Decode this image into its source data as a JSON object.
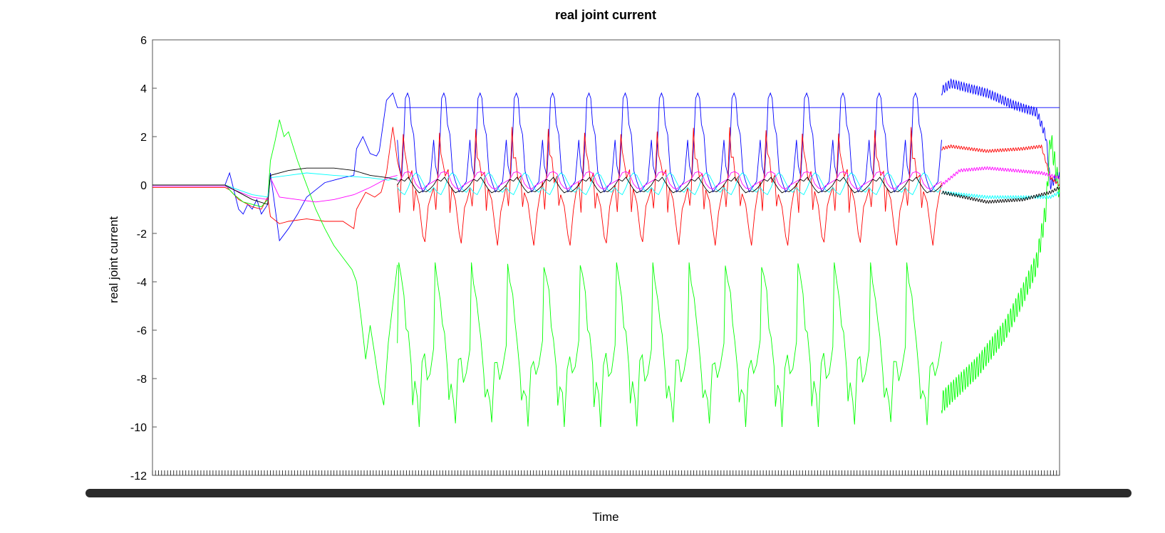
{
  "chart_data": {
    "type": "line",
    "title": "real joint current",
    "xlabel": "Time",
    "ylabel": "real joint current",
    "ylim": [
      -12,
      6
    ],
    "yticks": [
      6,
      4,
      2,
      0,
      -2,
      -4,
      -6,
      -8,
      -10,
      -12
    ],
    "xlim": [
      0,
      1000
    ],
    "grid": false,
    "x_tick_labels_visible": false,
    "colors": {
      "blue": "#0000ff",
      "red": "#ff0000",
      "green": "#00ff00",
      "magenta": "#ff00ff",
      "cyan": "#00ffff",
      "black": "#000000",
      "teal": "#008080"
    },
    "series": [
      {
        "color": "#0000ff",
        "x": [
          0,
          80,
          85,
          95,
          100,
          105,
          110,
          115,
          120,
          127,
          130,
          140,
          150,
          160,
          170,
          180,
          190,
          200,
          210,
          222,
          225,
          232,
          240,
          247,
          250,
          258,
          265,
          270,
          1000
        ],
        "y": [
          0,
          0,
          0.5,
          -1.0,
          -1.2,
          -0.8,
          -1.0,
          -0.6,
          -1.2,
          -0.8,
          0.5,
          -2.3,
          -1.8,
          -1.2,
          -0.5,
          -0.2,
          0.1,
          0.2,
          0.3,
          0.4,
          1.5,
          2.0,
          1.3,
          1.2,
          1.4,
          3.5,
          3.8,
          3.2,
          3.2
        ]
      },
      {
        "color": "#0000ff",
        "x": [
          0,
          10,
          20,
          30,
          40
        ],
        "y": [
          0,
          0,
          0,
          0,
          0
        ]
      },
      {
        "color": "#ff0000",
        "x": [
          0,
          80,
          85,
          95,
          110,
          120,
          127,
          130,
          140,
          150,
          170,
          190,
          210,
          222,
          225,
          235,
          245,
          252,
          258,
          265,
          270,
          275
        ],
        "y": [
          -0.1,
          -0.1,
          -0.2,
          -0.6,
          -0.9,
          -1.0,
          -0.5,
          -1.3,
          -1.6,
          -1.5,
          -1.4,
          -1.5,
          -1.5,
          -1.8,
          -1.0,
          -0.3,
          -0.5,
          -0.3,
          0.5,
          2.4,
          1.0,
          0.2
        ]
      },
      {
        "color": "#00ff00",
        "x": [
          0,
          80,
          90,
          100,
          110,
          120,
          127,
          130,
          135,
          140,
          145,
          150,
          160,
          170,
          180,
          190,
          200,
          210,
          220,
          225,
          230,
          235,
          240,
          245,
          250,
          255,
          260,
          270
        ],
        "y": [
          0,
          0,
          -0.4,
          -0.7,
          -0.8,
          -0.9,
          -0.6,
          1.0,
          1.8,
          2.7,
          2.0,
          2.2,
          1.0,
          0.0,
          -1.0,
          -1.8,
          -2.5,
          -3.0,
          -3.5,
          -4.0,
          -5.5,
          -7.2,
          -5.8,
          -7.0,
          -8.3,
          -9.1,
          -6.5,
          -3.3
        ]
      },
      {
        "color": "#ff00ff",
        "x": [
          0,
          80,
          90,
          110,
          127,
          130,
          140,
          160,
          180,
          200,
          222,
          240,
          260,
          270
        ],
        "y": [
          -0.05,
          -0.05,
          -0.2,
          -0.5,
          -0.6,
          0.3,
          -0.5,
          -0.6,
          -0.7,
          -0.6,
          -0.4,
          -0.1,
          0.3,
          0.4
        ]
      },
      {
        "color": "#00ffff",
        "x": [
          0,
          80,
          95,
          110,
          127,
          130,
          150,
          170,
          200,
          240,
          260,
          270
        ],
        "y": [
          0,
          0,
          -0.2,
          -0.4,
          -0.5,
          0.3,
          0.4,
          0.5,
          0.4,
          0.3,
          0.2,
          0.3
        ]
      },
      {
        "color": "#000000",
        "x": [
          0,
          80,
          95,
          110,
          127,
          130,
          150,
          170,
          200,
          222,
          240,
          260,
          270
        ],
        "y": [
          0,
          0,
          -0.3,
          -0.6,
          -0.8,
          0.4,
          0.6,
          0.7,
          0.7,
          0.6,
          0.4,
          0.3,
          0.2
        ]
      }
    ],
    "periodic_section": {
      "x_start": 270,
      "x_end": 870,
      "period": 40,
      "cycles": 15,
      "amplitude_ranges": {
        "blue": [
          -0.5,
          3.8
        ],
        "red": [
          -2.5,
          2.5
        ],
        "green": [
          -10.0,
          -3.2
        ],
        "magenta": [
          -0.3,
          0.6
        ],
        "cyan": [
          -0.5,
          0.5
        ],
        "black": [
          -0.4,
          0.4
        ]
      }
    },
    "tail_section": {
      "x_start": 870,
      "x_end": 1000,
      "blue": [
        [
          870,
          3.9
        ],
        [
          880,
          4.2
        ],
        [
          920,
          3.8
        ],
        [
          950,
          3.3
        ],
        [
          975,
          3.0
        ],
        [
          985,
          2.0
        ],
        [
          990,
          0.0
        ],
        [
          1000,
          0.5
        ]
      ],
      "red": [
        [
          870,
          1.5
        ],
        [
          880,
          1.6
        ],
        [
          920,
          1.4
        ],
        [
          960,
          1.5
        ],
        [
          980,
          1.6
        ],
        [
          990,
          0.3
        ],
        [
          1000,
          0.0
        ]
      ],
      "green": [
        [
          870,
          -9.0
        ],
        [
          880,
          -8.6
        ],
        [
          910,
          -7.5
        ],
        [
          940,
          -6.0
        ],
        [
          960,
          -4.5
        ],
        [
          975,
          -3.2
        ],
        [
          985,
          -1.0
        ],
        [
          990,
          2.0
        ],
        [
          1000,
          -0.3
        ]
      ],
      "magenta": [
        [
          870,
          0.0
        ],
        [
          890,
          0.6
        ],
        [
          920,
          0.7
        ],
        [
          950,
          0.6
        ],
        [
          980,
          0.5
        ],
        [
          1000,
          0.3
        ]
      ],
      "cyan": [
        [
          870,
          -0.3
        ],
        [
          920,
          -0.5
        ],
        [
          960,
          -0.5
        ],
        [
          990,
          -0.5
        ],
        [
          1000,
          -0.3
        ]
      ],
      "black": [
        [
          870,
          -0.3
        ],
        [
          920,
          -0.7
        ],
        [
          960,
          -0.6
        ],
        [
          990,
          -0.3
        ],
        [
          1000,
          -0.1
        ]
      ]
    }
  }
}
